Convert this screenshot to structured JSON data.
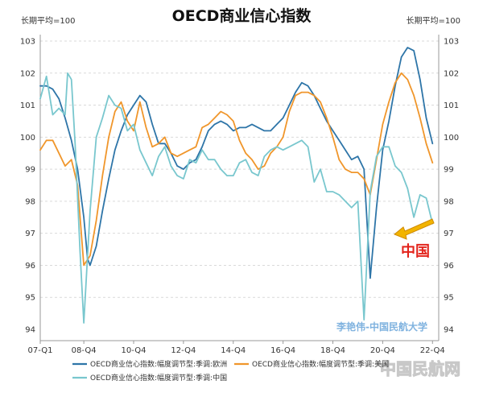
{
  "chart_data": {
    "type": "line",
    "title": "OECD商业信心指数",
    "unit_left": "长期平均=100",
    "unit_right": "长期平均=100",
    "ylim": [
      94,
      103
    ],
    "yticks": [
      94,
      95,
      96,
      97,
      98,
      99,
      100,
      101,
      102,
      103
    ],
    "x_start": 2007.0,
    "x_end": 2023.0,
    "xticks": [
      {
        "label": "07-Q1",
        "x": 2007.0
      },
      {
        "label": "08-Q4",
        "x": 2008.75
      },
      {
        "label": "10-Q4",
        "x": 2010.75
      },
      {
        "label": "12-Q4",
        "x": 2012.75
      },
      {
        "label": "14-Q4",
        "x": 2014.75
      },
      {
        "label": "16-Q4",
        "x": 2016.75
      },
      {
        "label": "18-Q4",
        "x": 2018.75
      },
      {
        "label": "20-Q4",
        "x": 2020.75
      },
      {
        "label": "22-Q4",
        "x": 2022.75
      }
    ],
    "series": [
      {
        "name": "OECD商业信心指数:幅度调节型:季调:欧洲",
        "color": "#2e75a8",
        "points": [
          [
            2007.0,
            101.6
          ],
          [
            2007.25,
            101.6
          ],
          [
            2007.5,
            101.5
          ],
          [
            2007.75,
            101.2
          ],
          [
            2008.0,
            100.6
          ],
          [
            2008.25,
            99.9
          ],
          [
            2008.5,
            99.0
          ],
          [
            2008.75,
            97.5
          ],
          [
            2008.9,
            96.2
          ],
          [
            2009.0,
            96.0
          ],
          [
            2009.25,
            96.6
          ],
          [
            2009.5,
            97.7
          ],
          [
            2009.75,
            98.7
          ],
          [
            2010.0,
            99.6
          ],
          [
            2010.25,
            100.2
          ],
          [
            2010.5,
            100.7
          ],
          [
            2010.75,
            101.0
          ],
          [
            2011.0,
            101.3
          ],
          [
            2011.25,
            101.1
          ],
          [
            2011.5,
            100.4
          ],
          [
            2011.75,
            99.8
          ],
          [
            2012.0,
            99.8
          ],
          [
            2012.25,
            99.5
          ],
          [
            2012.5,
            99.1
          ],
          [
            2012.75,
            99.0
          ],
          [
            2013.0,
            99.2
          ],
          [
            2013.25,
            99.3
          ],
          [
            2013.5,
            99.7
          ],
          [
            2013.75,
            100.2
          ],
          [
            2014.0,
            100.4
          ],
          [
            2014.25,
            100.5
          ],
          [
            2014.5,
            100.4
          ],
          [
            2014.75,
            100.2
          ],
          [
            2015.0,
            100.3
          ],
          [
            2015.25,
            100.3
          ],
          [
            2015.5,
            100.4
          ],
          [
            2015.75,
            100.3
          ],
          [
            2016.0,
            100.2
          ],
          [
            2016.25,
            100.2
          ],
          [
            2016.5,
            100.4
          ],
          [
            2016.75,
            100.6
          ],
          [
            2017.0,
            101.0
          ],
          [
            2017.25,
            101.4
          ],
          [
            2017.5,
            101.7
          ],
          [
            2017.75,
            101.6
          ],
          [
            2018.0,
            101.3
          ],
          [
            2018.25,
            100.9
          ],
          [
            2018.5,
            100.5
          ],
          [
            2018.75,
            100.2
          ],
          [
            2019.0,
            99.9
          ],
          [
            2019.25,
            99.6
          ],
          [
            2019.5,
            99.3
          ],
          [
            2019.75,
            99.4
          ],
          [
            2020.0,
            99.0
          ],
          [
            2020.25,
            95.6
          ],
          [
            2020.5,
            97.8
          ],
          [
            2020.75,
            99.6
          ],
          [
            2021.0,
            100.5
          ],
          [
            2021.25,
            101.6
          ],
          [
            2021.5,
            102.5
          ],
          [
            2021.75,
            102.8
          ],
          [
            2022.0,
            102.7
          ],
          [
            2022.25,
            101.8
          ],
          [
            2022.5,
            100.6
          ],
          [
            2022.75,
            99.8
          ]
        ]
      },
      {
        "name": "OECD商业信心指数:幅度调节型:季调:美国",
        "color": "#f0962b",
        "points": [
          [
            2007.0,
            99.6
          ],
          [
            2007.25,
            99.9
          ],
          [
            2007.5,
            99.9
          ],
          [
            2007.75,
            99.5
          ],
          [
            2008.0,
            99.1
          ],
          [
            2008.25,
            99.3
          ],
          [
            2008.5,
            98.5
          ],
          [
            2008.75,
            96.0
          ],
          [
            2009.0,
            96.3
          ],
          [
            2009.25,
            97.4
          ],
          [
            2009.5,
            98.8
          ],
          [
            2009.75,
            100.0
          ],
          [
            2010.0,
            100.8
          ],
          [
            2010.25,
            101.1
          ],
          [
            2010.5,
            100.5
          ],
          [
            2010.75,
            100.2
          ],
          [
            2011.0,
            101.1
          ],
          [
            2011.25,
            100.3
          ],
          [
            2011.5,
            99.7
          ],
          [
            2011.75,
            99.8
          ],
          [
            2012.0,
            100.0
          ],
          [
            2012.25,
            99.5
          ],
          [
            2012.5,
            99.4
          ],
          [
            2012.75,
            99.5
          ],
          [
            2013.0,
            99.6
          ],
          [
            2013.25,
            99.7
          ],
          [
            2013.5,
            100.3
          ],
          [
            2013.75,
            100.4
          ],
          [
            2014.0,
            100.6
          ],
          [
            2014.25,
            100.8
          ],
          [
            2014.5,
            100.7
          ],
          [
            2014.75,
            100.5
          ],
          [
            2015.0,
            99.9
          ],
          [
            2015.25,
            99.5
          ],
          [
            2015.5,
            99.3
          ],
          [
            2015.75,
            99.0
          ],
          [
            2016.0,
            99.1
          ],
          [
            2016.25,
            99.5
          ],
          [
            2016.5,
            99.7
          ],
          [
            2016.75,
            100.0
          ],
          [
            2017.0,
            100.8
          ],
          [
            2017.25,
            101.3
          ],
          [
            2017.5,
            101.4
          ],
          [
            2017.75,
            101.4
          ],
          [
            2018.0,
            101.3
          ],
          [
            2018.25,
            101.1
          ],
          [
            2018.5,
            100.6
          ],
          [
            2018.75,
            100.0
          ],
          [
            2019.0,
            99.3
          ],
          [
            2019.25,
            99.0
          ],
          [
            2019.5,
            98.9
          ],
          [
            2019.75,
            98.9
          ],
          [
            2020.0,
            98.7
          ],
          [
            2020.25,
            98.2
          ],
          [
            2020.5,
            99.3
          ],
          [
            2020.75,
            100.4
          ],
          [
            2021.0,
            101.1
          ],
          [
            2021.25,
            101.7
          ],
          [
            2021.5,
            102.0
          ],
          [
            2021.75,
            101.8
          ],
          [
            2022.0,
            101.3
          ],
          [
            2022.25,
            100.6
          ],
          [
            2022.5,
            99.8
          ],
          [
            2022.75,
            99.2
          ]
        ]
      },
      {
        "name": "OECD商业信心指数:幅度调节型:季调:中国",
        "color": "#79c7ce",
        "points": [
          [
            2007.0,
            101.2
          ],
          [
            2007.25,
            101.9
          ],
          [
            2007.5,
            100.7
          ],
          [
            2007.75,
            100.9
          ],
          [
            2008.0,
            100.7
          ],
          [
            2008.1,
            102.0
          ],
          [
            2008.25,
            101.8
          ],
          [
            2008.4,
            99.8
          ],
          [
            2008.6,
            96.4
          ],
          [
            2008.75,
            94.2
          ],
          [
            2009.0,
            97.7
          ],
          [
            2009.25,
            100.0
          ],
          [
            2009.5,
            100.6
          ],
          [
            2009.75,
            101.3
          ],
          [
            2010.0,
            101.0
          ],
          [
            2010.25,
            100.9
          ],
          [
            2010.5,
            100.2
          ],
          [
            2010.75,
            100.4
          ],
          [
            2011.0,
            99.6
          ],
          [
            2011.25,
            99.2
          ],
          [
            2011.5,
            98.8
          ],
          [
            2011.75,
            99.4
          ],
          [
            2012.0,
            99.7
          ],
          [
            2012.25,
            99.1
          ],
          [
            2012.5,
            98.8
          ],
          [
            2012.75,
            98.7
          ],
          [
            2013.0,
            99.3
          ],
          [
            2013.25,
            99.2
          ],
          [
            2013.5,
            99.6
          ],
          [
            2013.75,
            99.3
          ],
          [
            2014.0,
            99.3
          ],
          [
            2014.25,
            99.0
          ],
          [
            2014.5,
            98.8
          ],
          [
            2014.75,
            98.8
          ],
          [
            2015.0,
            99.2
          ],
          [
            2015.25,
            99.3
          ],
          [
            2015.5,
            98.9
          ],
          [
            2015.75,
            98.8
          ],
          [
            2016.0,
            99.4
          ],
          [
            2016.25,
            99.6
          ],
          [
            2016.5,
            99.7
          ],
          [
            2016.75,
            99.6
          ],
          [
            2017.0,
            99.7
          ],
          [
            2017.25,
            99.8
          ],
          [
            2017.5,
            99.9
          ],
          [
            2017.75,
            99.7
          ],
          [
            2018.0,
            98.6
          ],
          [
            2018.25,
            99.0
          ],
          [
            2018.5,
            98.3
          ],
          [
            2018.75,
            98.3
          ],
          [
            2019.0,
            98.2
          ],
          [
            2019.25,
            98.0
          ],
          [
            2019.5,
            97.8
          ],
          [
            2019.75,
            98.0
          ],
          [
            2020.0,
            94.3
          ],
          [
            2020.25,
            98.3
          ],
          [
            2020.5,
            99.4
          ],
          [
            2020.75,
            99.7
          ],
          [
            2021.0,
            99.7
          ],
          [
            2021.25,
            99.1
          ],
          [
            2021.5,
            98.9
          ],
          [
            2021.75,
            98.4
          ],
          [
            2022.0,
            97.5
          ],
          [
            2022.25,
            98.2
          ],
          [
            2022.5,
            98.1
          ],
          [
            2022.75,
            97.3
          ]
        ]
      }
    ],
    "annotation": {
      "text": "中国",
      "color": "#e3241c"
    },
    "watermark_text": "李艳伟-中国民航大学",
    "watermark_logo_text": "中国民航网"
  }
}
